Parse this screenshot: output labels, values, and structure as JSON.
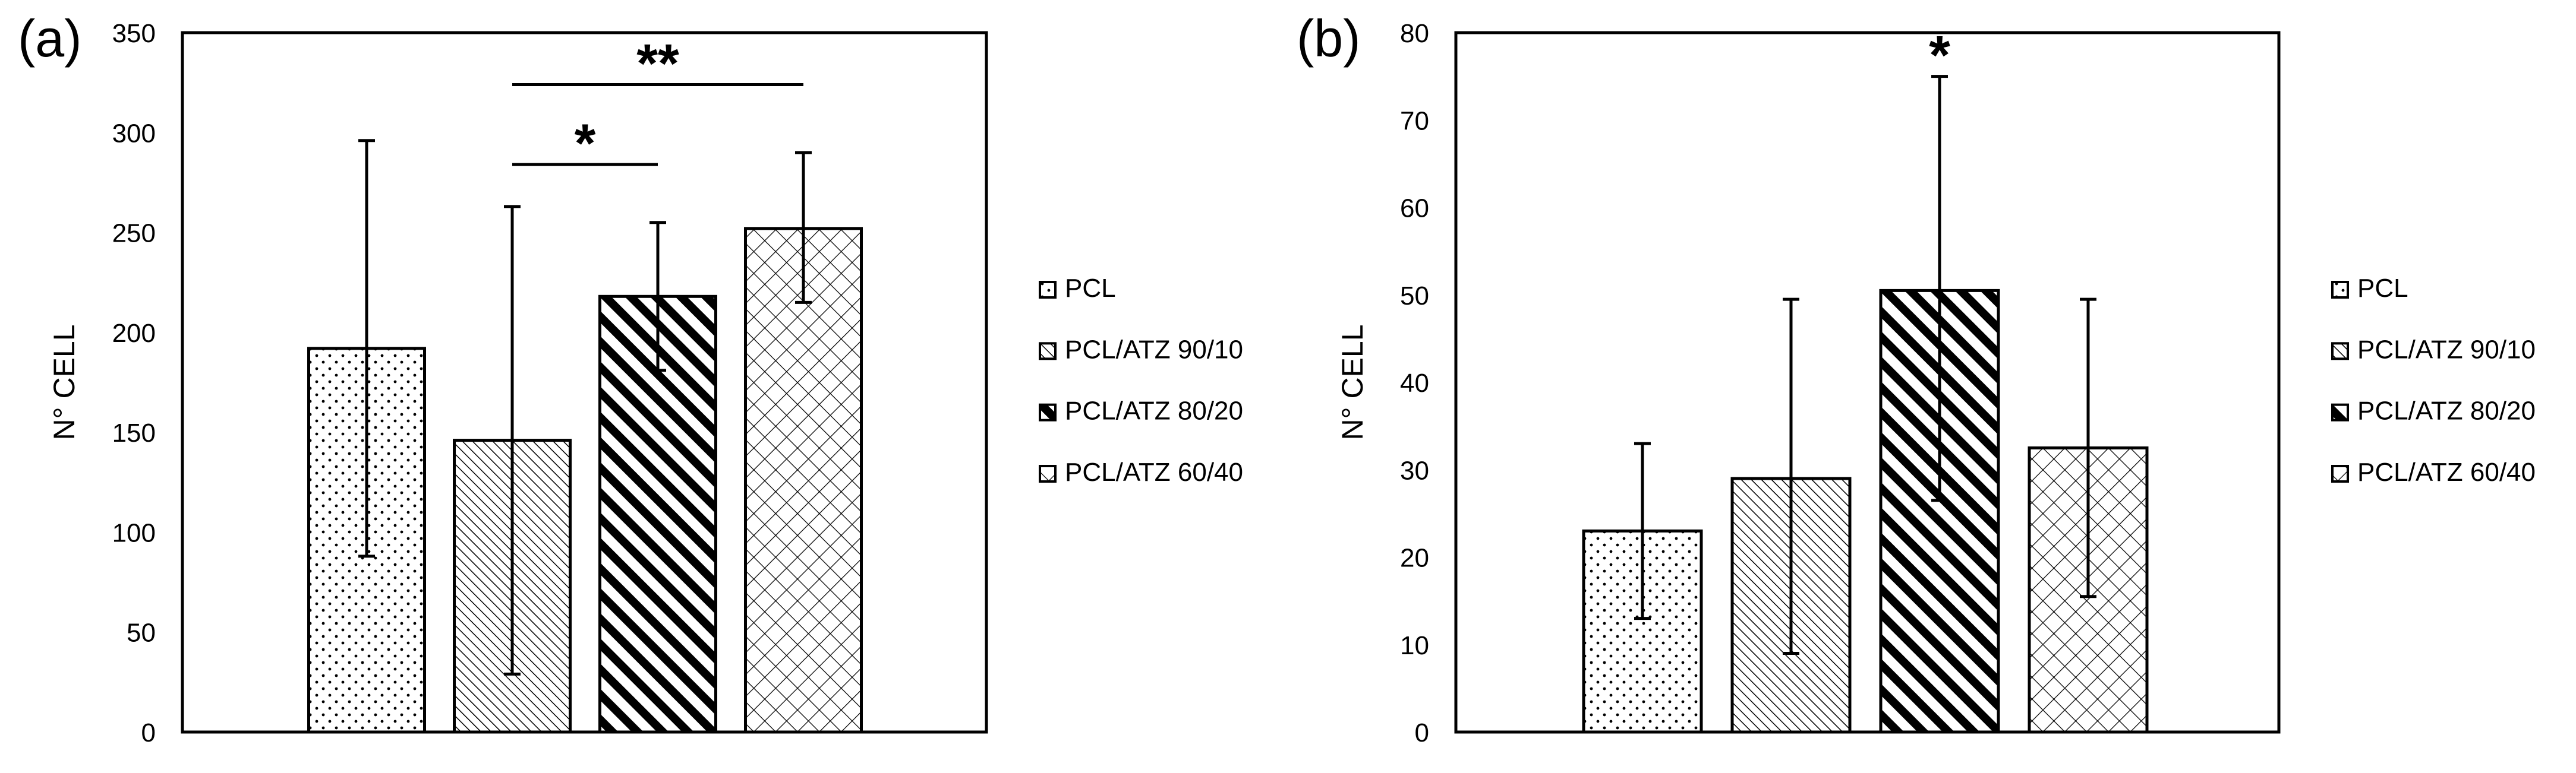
{
  "patterns": {
    "PCL": "dots",
    "PCL/ATZ 90/10": "fine-diagonal",
    "PCL/ATZ 80/20": "thick-diagonal",
    "PCL/ATZ 60/40": "crosshatch"
  },
  "colors": {
    "bar_stroke": "#000000",
    "background": "#ffffff"
  },
  "chart_data": [
    {
      "type": "bar",
      "panel_label": "(a)",
      "ylabel": "N° CELL",
      "xlabel": "",
      "ylim": [
        0,
        350
      ],
      "yticks": [
        0,
        50,
        100,
        150,
        200,
        250,
        300,
        350
      ],
      "categories": [
        "PCL",
        "PCL/ATZ 90/10",
        "PCL/ATZ 80/20",
        "PCL/ATZ 60/40"
      ],
      "values": [
        192,
        146,
        218,
        252
      ],
      "error_low": [
        88,
        29,
        181,
        215
      ],
      "error_high": [
        296,
        263,
        255,
        290
      ],
      "legend": [
        "PCL",
        "PCL/ATZ 90/10",
        "PCL/ATZ 80/20",
        "PCL/ATZ 60/40"
      ],
      "legend_position": "right",
      "grid": false,
      "significance": [
        {
          "from": 1,
          "to": 2,
          "label": "*",
          "y": 284
        },
        {
          "from": 1,
          "to": 3,
          "label": "**",
          "y": 324
        }
      ]
    },
    {
      "type": "bar",
      "panel_label": "(b)",
      "ylabel": "N° CELL",
      "xlabel": "",
      "ylim": [
        0,
        80
      ],
      "yticks": [
        0,
        10,
        20,
        30,
        40,
        50,
        60,
        70,
        80
      ],
      "categories": [
        "PCL",
        "PCL/ATZ 90/10",
        "PCL/ATZ 80/20",
        "PCL/ATZ 60/40"
      ],
      "values": [
        23,
        29,
        50.5,
        32.5
      ],
      "error_low": [
        13,
        9,
        26.5,
        15.5
      ],
      "error_high": [
        33,
        49.5,
        75,
        49.5
      ],
      "legend": [
        "PCL",
        "PCL/ATZ 90/10",
        "PCL/ATZ 80/20",
        "PCL/ATZ 60/40"
      ],
      "legend_position": "right",
      "grid": false,
      "significance": [
        {
          "from": 2,
          "to": 2,
          "label": "*",
          "y": 75
        }
      ]
    }
  ]
}
